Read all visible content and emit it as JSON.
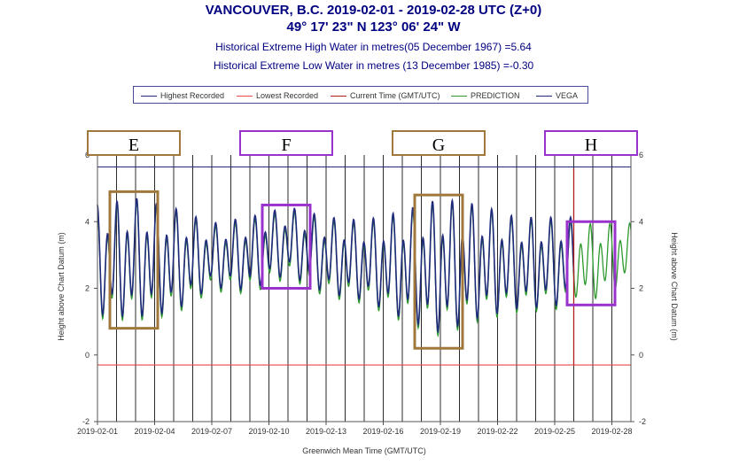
{
  "header": {
    "title": "VANCOUVER, B.C. 2019-02-01 - 2019-02-28 UTC (Z+0)",
    "coords": "49° 17' 23\" N 123° 06' 24\" W",
    "extreme_high": "Historical Extreme High Water in metres(05 December 1967) =5.64",
    "extreme_low": "Historical Extreme Low Water in metres (13 December 1985) =-0.30"
  },
  "colors": {
    "recorded": "#1f2a7a",
    "lowest": "#e84848",
    "current": "#b01c1c",
    "prediction": "#2e9a2e",
    "vega": "#1f2a7a",
    "brown_box": "#a0783c",
    "purple_box": "#9933cc"
  },
  "chart_data": {
    "type": "line",
    "xlabel": "Greenwich Mean Time (GMT/UTC)",
    "ylabel": "Height above Chart Datum (m)",
    "ylabel_right": "Height above Chart Datum (m)",
    "ylim": [
      -2,
      6
    ],
    "xlim": [
      "2019-02-01",
      "2019-02-29"
    ],
    "yticks": [
      6,
      4,
      2,
      0,
      -2
    ],
    "xticks": [
      "2019-02-01",
      "2019-02-04",
      "2019-02-07",
      "2019-02-10",
      "2019-02-13",
      "2019-02-16",
      "2019-02-19",
      "2019-02-22",
      "2019-02-25",
      "2019-02-28"
    ],
    "grid": "vertical daily",
    "legend_position": "top",
    "legend": [
      "Highest Recorded",
      "Lowest Recorded",
      "Current Time (GMT/UTC)",
      "PREDICTION",
      "VEGA"
    ],
    "highest_recorded": 5.64,
    "lowest_recorded": -0.3,
    "current_time": "2019-02-26",
    "recorded_end": "2019-02-26",
    "series": [
      {
        "name": "VEGA",
        "x": [
          "2019-02-01",
          "2019-02-03",
          "2019-02-05",
          "2019-02-07",
          "2019-02-09",
          "2019-02-11",
          "2019-02-13",
          "2019-02-15",
          "2019-02-17",
          "2019-02-19",
          "2019-02-21",
          "2019-02-23",
          "2019-02-25",
          "2019-02-26"
        ],
        "highs": [
          4.6,
          4.8,
          4.5,
          4.0,
          4.2,
          4.5,
          4.2,
          4.1,
          4.4,
          4.8,
          4.6,
          4.2,
          4.2,
          4.2
        ],
        "lows": [
          1.0,
          0.9,
          1.1,
          1.9,
          1.8,
          2.3,
          1.7,
          1.5,
          0.9,
          0.4,
          0.9,
          1.2,
          1.3,
          1.4
        ]
      },
      {
        "name": "PREDICTION",
        "x": [
          "2019-02-25",
          "2019-02-27",
          "2019-02-29"
        ],
        "highs": [
          4.0,
          4.0,
          4.0
        ],
        "lows": [
          1.7,
          1.5,
          2.1
        ]
      }
    ],
    "annotations": [
      {
        "label": "E",
        "x0": "2019-02-01",
        "x1": "2019-02-05",
        "y0": 0.8,
        "y1": 4.9
      },
      {
        "label": "F",
        "x0": "2019-02-09",
        "x1": "2019-02-13",
        "y0": 2.0,
        "y1": 4.5
      },
      {
        "label": "G",
        "x0": "2019-02-17",
        "x1": "2019-02-21",
        "y0": 0.2,
        "y1": 4.8
      },
      {
        "label": "H",
        "x0": "2019-02-25",
        "x1": "2019-02-29",
        "y0": 1.5,
        "y1": 4.0
      }
    ]
  }
}
